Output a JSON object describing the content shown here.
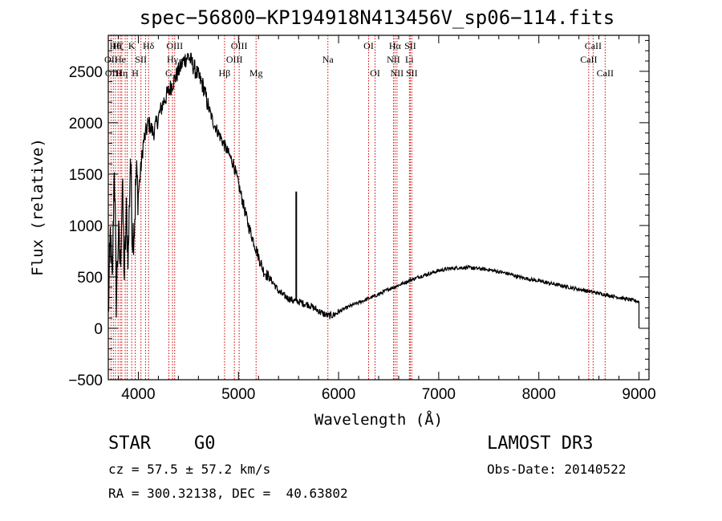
{
  "chart_data": {
    "type": "line",
    "title": "spec−56800−KP194918N413456V_sp06−114.fits",
    "xlabel": "Wavelength (Å)",
    "ylabel": "Flux (relative)",
    "xlim": [
      3700,
      9100
    ],
    "ylim": [
      -500,
      2850
    ],
    "x_ticks": [
      4000,
      5000,
      6000,
      7000,
      8000,
      9000
    ],
    "y_ticks": [
      -500,
      0,
      500,
      1000,
      1500,
      2000,
      2500
    ],
    "series": [
      {
        "name": "flux",
        "x": [
          3700,
          3720,
          3740,
          3760,
          3780,
          3800,
          3820,
          3840,
          3860,
          3880,
          3900,
          3920,
          3940,
          3960,
          3980,
          4000,
          4050,
          4100,
          4150,
          4200,
          4250,
          4300,
          4350,
          4400,
          4450,
          4500,
          4550,
          4600,
          4650,
          4700,
          4750,
          4800,
          4850,
          4900,
          4950,
          5000,
          5050,
          5100,
          5150,
          5200,
          5250,
          5300,
          5350,
          5400,
          5450,
          5500,
          5550,
          5600,
          5650,
          5700,
          5750,
          5800,
          5850,
          5900,
          5950,
          6000,
          6100,
          6200,
          6300,
          6400,
          6500,
          6600,
          6700,
          6800,
          6900,
          7000,
          7100,
          7200,
          7300,
          7400,
          7500,
          7600,
          7700,
          7800,
          7900,
          8000,
          8100,
          8200,
          8300,
          8400,
          8500,
          8600,
          8700,
          8800,
          8900,
          9000
        ],
        "values": [
          100,
          900,
          400,
          1650,
          300,
          900,
          600,
          1400,
          500,
          1100,
          700,
          1700,
          900,
          1000,
          1500,
          1300,
          1800,
          2000,
          1900,
          2050,
          2200,
          2300,
          2400,
          2500,
          2600,
          2650,
          2550,
          2450,
          2350,
          2150,
          2000,
          1900,
          1800,
          1700,
          1600,
          1400,
          1200,
          1000,
          850,
          700,
          560,
          500,
          440,
          360,
          320,
          290,
          270,
          260,
          240,
          230,
          200,
          170,
          140,
          120,
          130,
          160,
          210,
          250,
          290,
          330,
          380,
          420,
          460,
          500,
          530,
          560,
          580,
          590,
          590,
          580,
          570,
          550,
          530,
          500,
          480,
          460,
          440,
          420,
          400,
          380,
          360,
          340,
          320,
          300,
          280,
          260
        ]
      }
    ],
    "spikes": [
      {
        "x": 5577,
        "y": 1330
      }
    ],
    "lines": [
      {
        "x": 3727,
        "label": "OII",
        "row": 2
      },
      {
        "x": 3750,
        "label": "OIII",
        "row": 3
      },
      {
        "x": 3771,
        "label": "Hθ",
        "row": 1
      },
      {
        "x": 3798,
        "label": "Hζ",
        "row": 1
      },
      {
        "x": 3820,
        "label": "He",
        "row": 2
      },
      {
        "x": 3835,
        "label": "Hη",
        "row": 3
      },
      {
        "x": 3869,
        "label": "",
        "row": 0
      },
      {
        "x": 3889,
        "label": "",
        "row": 0
      },
      {
        "x": 3934,
        "label": "K",
        "row": 1
      },
      {
        "x": 3969,
        "label": "H",
        "row": 3
      },
      {
        "x": 4026,
        "label": "SII",
        "row": 2
      },
      {
        "x": 4072,
        "label": "",
        "row": 0
      },
      {
        "x": 4102,
        "label": "Hδ",
        "row": 1
      },
      {
        "x": 4304,
        "label": "G",
        "row": 3
      },
      {
        "x": 4341,
        "label": "Hγ",
        "row": 2
      },
      {
        "x": 4363,
        "label": "OIII",
        "row": 1
      },
      {
        "x": 4861,
        "label": "Hβ",
        "row": 3
      },
      {
        "x": 4959,
        "label": "OIII",
        "row": 2
      },
      {
        "x": 5007,
        "label": "OIII",
        "row": 1
      },
      {
        "x": 5176,
        "label": "Mg",
        "row": 3
      },
      {
        "x": 5893,
        "label": "Na",
        "row": 2
      },
      {
        "x": 6300,
        "label": "OI",
        "row": 1
      },
      {
        "x": 6364,
        "label": "OI",
        "row": 3
      },
      {
        "x": 6548,
        "label": "NII",
        "row": 2
      },
      {
        "x": 6563,
        "label": "Hα",
        "row": 1
      },
      {
        "x": 6583,
        "label": "NII",
        "row": 3
      },
      {
        "x": 6707,
        "label": "Li",
        "row": 2
      },
      {
        "x": 6716,
        "label": "SII",
        "row": 1
      },
      {
        "x": 6731,
        "label": "SII",
        "row": 3
      },
      {
        "x": 8498,
        "label": "CaII",
        "row": 2
      },
      {
        "x": 8542,
        "label": "CaII",
        "row": 1
      },
      {
        "x": 8662,
        "label": "CaII",
        "row": 3
      }
    ]
  },
  "info": {
    "object_class": "STAR",
    "subclass": "G0",
    "survey": "LAMOST DR3",
    "cz": "cz = 57.5 ± 57.2 km/s",
    "obs_date": "Obs-Date: 20140522",
    "coords": "RA = 300.32138, DEC =  40.63802"
  },
  "colors": {
    "axes": "#000000",
    "spectrum": "#000000",
    "line_markers": "#cc0000",
    "background": "#ffffff"
  }
}
